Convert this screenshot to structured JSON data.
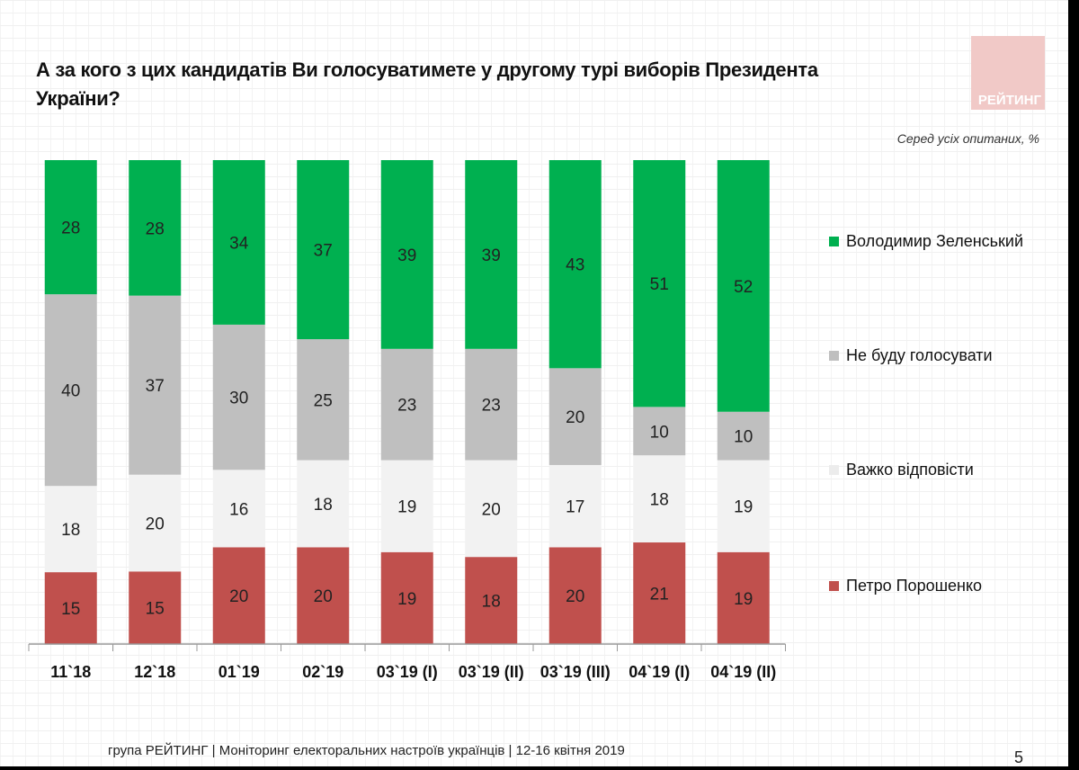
{
  "title": "А за кого з цих кандидатів Ви голосуватимете у другому турі виборів Президента України?",
  "logo_text": "РЕЙТИНГ",
  "footer": "група РЕЙТИНГ | Моніторинг електоральних настроїв українців  |  12-16 квітня  2019",
  "page_number": "5",
  "chart_data": {
    "type": "bar",
    "stacked": true,
    "subtitle": "Серед усіх опитаних, %",
    "categories": [
      "11`18",
      "12`18",
      "01`19",
      "02`19",
      "03`19 (I)",
      "03`19 (II)",
      "03`19 (III)",
      "04`19 (I)",
      "04`19 (II)"
    ],
    "series": [
      {
        "name": "Петро Порошенко",
        "color": "#c0504d",
        "values": [
          15,
          15,
          20,
          20,
          19,
          18,
          20,
          21,
          19
        ]
      },
      {
        "name": "Важко відповісти",
        "color": "#f2f2f2",
        "values": [
          18,
          20,
          16,
          18,
          19,
          20,
          17,
          18,
          19
        ]
      },
      {
        "name": "Не буду голосувати",
        "color": "#bfbfbf",
        "values": [
          40,
          37,
          30,
          25,
          23,
          23,
          20,
          10,
          10
        ]
      },
      {
        "name": "Володимир Зеленський",
        "color": "#00b050",
        "values": [
          28,
          28,
          34,
          37,
          39,
          39,
          43,
          51,
          52
        ]
      }
    ],
    "legend_position": "right",
    "grid": false
  }
}
